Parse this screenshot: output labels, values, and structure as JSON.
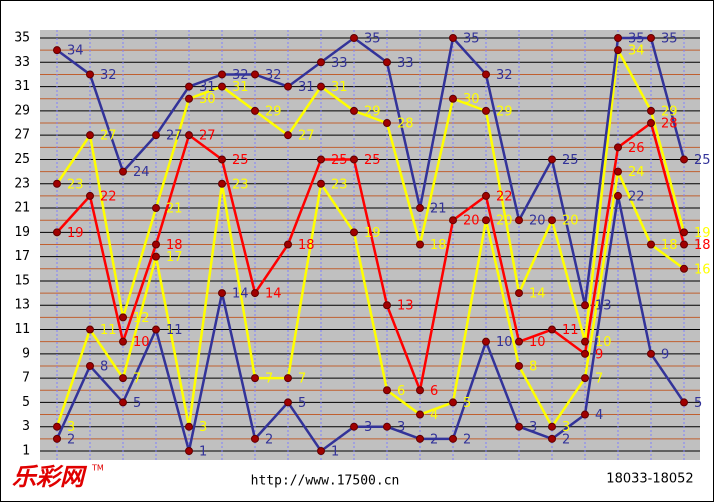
{
  "chart_data": {
    "type": "line",
    "categories": [
      null,
      null,
      null,
      null,
      null,
      null,
      null,
      null,
      null,
      null,
      null,
      null,
      null,
      null,
      null,
      null,
      null,
      null,
      null,
      null
    ],
    "series": [
      {
        "color": "#333399",
        "values": [
          2,
          8,
          5,
          11,
          1,
          14,
          2,
          5,
          1,
          3,
          3,
          2,
          2,
          10,
          3,
          2,
          4,
          22,
          9,
          5
        ]
      },
      {
        "color": "#ffff00",
        "values": [
          3,
          11,
          7,
          17,
          3,
          23,
          7,
          7,
          23,
          19,
          6,
          4,
          5,
          20,
          8,
          3,
          7,
          24,
          18,
          16
        ]
      },
      {
        "color": "#ff0000",
        "values": [
          19,
          22,
          10,
          18,
          27,
          25,
          14,
          18,
          25,
          25,
          13,
          6,
          20,
          22,
          10,
          11,
          9,
          26,
          28,
          18
        ]
      },
      {
        "color": "#ffff00",
        "values": [
          23,
          27,
          12,
          21,
          30,
          31,
          29,
          27,
          31,
          29,
          28,
          18,
          30,
          29,
          14,
          20,
          10,
          34,
          29,
          19
        ]
      },
      {
        "color": "#333399",
        "values": [
          34,
          32,
          24,
          27,
          31,
          32,
          32,
          31,
          33,
          35,
          33,
          21,
          35,
          32,
          20,
          25,
          13,
          35,
          35,
          25
        ]
      }
    ],
    "ylim": [
      1,
      35
    ],
    "yticks": [
      1,
      3,
      5,
      7,
      9,
      11,
      13,
      15,
      17,
      19,
      21,
      23,
      25,
      27,
      29,
      31,
      33,
      35
    ],
    "grid": true,
    "logo": "乐彩网",
    "trademark": "TM",
    "url": "http://www.17500.cn",
    "range": "18033-18052"
  }
}
